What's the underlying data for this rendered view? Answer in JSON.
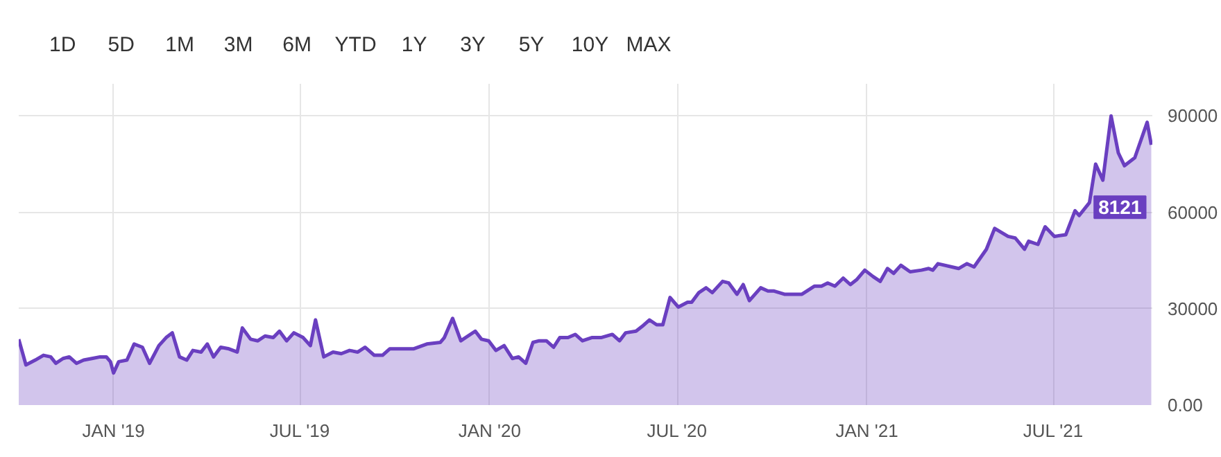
{
  "chart_data": {
    "type": "area",
    "annotations": [
      "1D",
      "5D",
      "1M",
      "3M",
      "6M",
      "YTD",
      "1Y",
      "3Y",
      "5Y",
      "10Y",
      "MAX",
      {
        "text": "8121",
        "x": "2021-10-04",
        "y": 81000
      }
    ],
    "x": [
      "2018-10-01",
      "2018-10-08",
      "2018-10-17",
      "2018-10-25",
      "2018-11-01",
      "2018-11-06",
      "2018-11-13",
      "2018-11-19",
      "2018-11-26",
      "2018-12-03",
      "2018-12-11",
      "2018-12-19",
      "2018-12-25",
      "2018-12-29",
      "2019-01-01",
      "2019-01-06",
      "2019-01-14",
      "2019-01-21",
      "2019-01-29",
      "2019-02-05",
      "2019-02-14",
      "2019-02-21",
      "2019-02-27",
      "2019-03-06",
      "2019-03-13",
      "2019-03-19",
      "2019-03-27",
      "2019-04-02",
      "2019-04-08",
      "2019-04-15",
      "2019-04-23",
      "2019-05-01",
      "2019-05-06",
      "2019-05-14",
      "2019-05-21",
      "2019-05-28",
      "2019-06-05",
      "2019-06-11",
      "2019-06-18",
      "2019-06-25",
      "2019-07-04",
      "2019-07-11",
      "2019-07-16",
      "2019-07-24",
      "2019-08-02",
      "2019-08-10",
      "2019-08-18",
      "2019-08-26",
      "2019-09-02",
      "2019-09-11",
      "2019-09-19",
      "2019-09-26",
      "2019-10-05",
      "2019-10-19",
      "2019-11-01",
      "2019-11-14",
      "2019-11-18",
      "2019-11-26",
      "2019-12-04",
      "2019-12-18",
      "2019-12-24",
      "2019-12-31",
      "2020-01-07",
      "2020-01-15",
      "2020-01-23",
      "2020-01-29",
      "2020-02-05",
      "2020-02-12",
      "2020-02-18",
      "2020-02-25",
      "2020-03-03",
      "2020-03-09",
      "2020-03-17",
      "2020-03-24",
      "2020-03-31",
      "2020-04-09",
      "2020-04-18",
      "2020-04-29",
      "2020-05-06",
      "2020-05-12",
      "2020-05-22",
      "2020-05-28",
      "2020-06-04",
      "2020-06-11",
      "2020-06-17",
      "2020-06-24",
      "2020-07-02",
      "2020-07-11",
      "2020-07-15",
      "2020-07-22",
      "2020-07-29",
      "2020-08-04",
      "2020-08-14",
      "2020-08-20",
      "2020-08-28",
      "2020-09-03",
      "2020-09-09",
      "2020-09-20",
      "2020-09-27",
      "2020-10-03",
      "2020-10-13",
      "2020-10-22",
      "2020-10-30",
      "2020-11-11",
      "2020-11-18",
      "2020-11-24",
      "2020-12-01",
      "2020-12-09",
      "2020-12-16",
      "2020-12-22",
      "2020-12-30",
      "2021-01-07",
      "2021-01-14",
      "2021-01-21",
      "2021-01-27",
      "2021-02-03",
      "2021-02-12",
      "2021-02-23",
      "2021-03-02",
      "2021-03-06",
      "2021-03-11",
      "2021-03-31",
      "2021-04-08",
      "2021-04-15",
      "2021-04-27",
      "2021-05-05",
      "2021-05-18",
      "2021-05-25",
      "2021-06-03",
      "2021-06-07",
      "2021-06-16",
      "2021-06-23",
      "2021-07-02",
      "2021-07-13",
      "2021-07-22",
      "2021-07-26",
      "2021-08-05",
      "2021-08-11",
      "2021-08-18",
      "2021-08-26",
      "2021-09-02",
      "2021-09-08",
      "2021-09-18",
      "2021-09-30",
      "2021-10-04"
    ],
    "series": [
      {
        "color": "#6a3fc0",
        "values": [
          20500,
          12500,
          14000,
          15500,
          15000,
          13000,
          14500,
          15000,
          13000,
          14000,
          14500,
          15000,
          15000,
          13500,
          10000,
          13500,
          14000,
          19000,
          18000,
          13000,
          18500,
          21000,
          22500,
          15000,
          14000,
          17000,
          16500,
          19000,
          15000,
          18000,
          17500,
          16500,
          24000,
          20500,
          20000,
          21500,
          21000,
          23000,
          20000,
          22500,
          21000,
          18500,
          26500,
          15000,
          16500,
          16000,
          17000,
          16500,
          18000,
          15500,
          15500,
          17500,
          17500,
          17500,
          19000,
          19500,
          21000,
          27000,
          20000,
          23000,
          20500,
          20000,
          17000,
          18500,
          14500,
          15000,
          13000,
          19500,
          20000,
          20000,
          18000,
          21000,
          21000,
          22000,
          20000,
          21000,
          21000,
          22000,
          20000,
          22500,
          23000,
          24500,
          26500,
          25000,
          25000,
          33500,
          30500,
          32000,
          32000,
          35000,
          36500,
          35000,
          38500,
          38000,
          34500,
          37500,
          32500,
          36500,
          35500,
          35500,
          34500,
          34500,
          34500,
          37000,
          37000,
          38000,
          37000,
          39500,
          37500,
          39000,
          42000,
          40000,
          38500,
          42500,
          41000,
          43500,
          41500,
          42000,
          42500,
          42000,
          44000,
          42500,
          44000,
          43000,
          48500,
          55000,
          52500,
          52000,
          48500,
          51000,
          50000,
          55500,
          52500,
          53000,
          60500,
          59000,
          63000,
          75000,
          70000,
          90000,
          78500,
          74500,
          77000,
          88000,
          81000
        ]
      }
    ],
    "xlim": [
      "2018-10-01",
      "2021-10-05"
    ],
    "xticks": [
      {
        "value": "2019-01-01",
        "label": "JAN '19"
      },
      {
        "value": "2019-07-01",
        "label": "JUL '19"
      },
      {
        "value": "2020-01-01",
        "label": "JAN '20"
      },
      {
        "value": "2020-07-01",
        "label": "JUL '20"
      },
      {
        "value": "2021-01-01",
        "label": "JAN '21"
      },
      {
        "value": "2021-07-01",
        "label": "JUL '21"
      }
    ],
    "ylim": [
      0,
      100000
    ],
    "yticks": [
      {
        "value": 0,
        "label": "0.00"
      },
      90000,
      60000,
      30000
    ],
    "grid": true
  }
}
